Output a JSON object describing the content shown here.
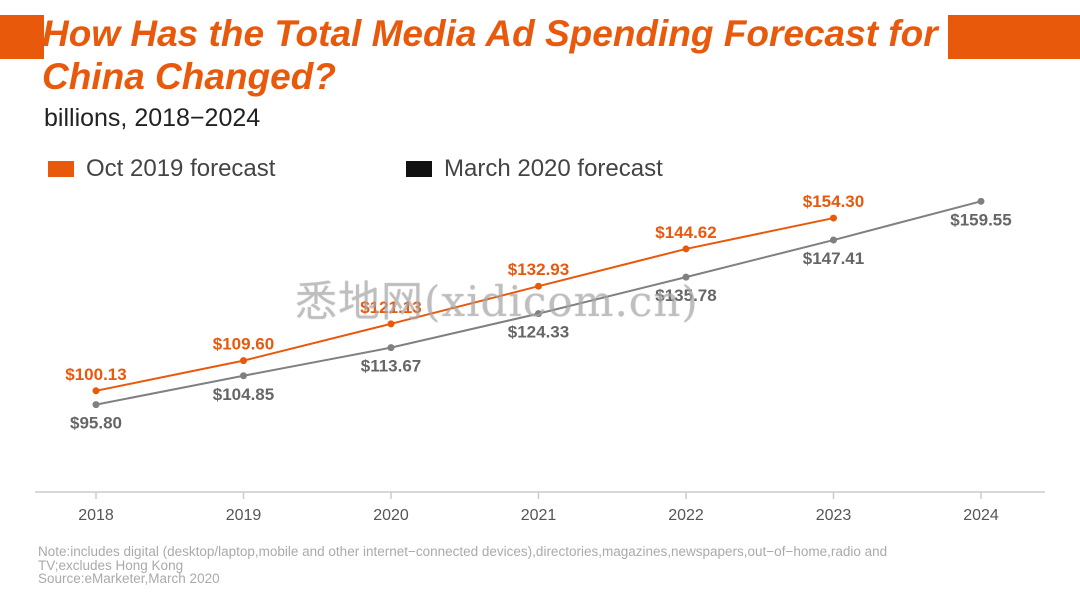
{
  "header": {
    "title": "How Has the Total Media Ad Spending Forecast for China Changed?",
    "subtitle": "billions, 2018−2024"
  },
  "colors": {
    "accent": "#e8590c",
    "oct2019": "#e8590c",
    "march2020": "#808080",
    "legend_march": "#111111"
  },
  "watermark": "悉地网(xidicom.cn)",
  "chart_data": {
    "type": "line",
    "x": [
      "2018",
      "2019",
      "2020",
      "2021",
      "2022",
      "2023",
      "2024"
    ],
    "ylim": [
      80,
      170
    ],
    "grid": false,
    "legend_position": "top-left",
    "series": [
      {
        "name": "Oct 2019 forecast",
        "values": [
          100.13,
          109.6,
          121.13,
          132.93,
          144.62,
          154.3,
          null
        ],
        "labels": [
          "$100.13",
          "$109.60",
          "$121.13",
          "$132.93",
          "$144.62",
          "$154.30",
          null
        ]
      },
      {
        "name": "March 2020 forecast",
        "values": [
          95.8,
          104.85,
          113.67,
          124.33,
          135.78,
          147.41,
          159.55
        ],
        "labels": [
          "$95.80",
          "$104.85",
          "$113.67",
          "$124.33",
          "$135.78",
          "$147.41",
          "$159.55"
        ]
      }
    ]
  },
  "footnote": {
    "note_line1": "Note:includes digital (desktop/laptop,mobile and other internet−connected devices),directories,magazines,newspapers,out−of−home,radio and",
    "note_line2": "TV;excludes Hong Kong",
    "source": "Source:eMarketer,March 2020"
  }
}
